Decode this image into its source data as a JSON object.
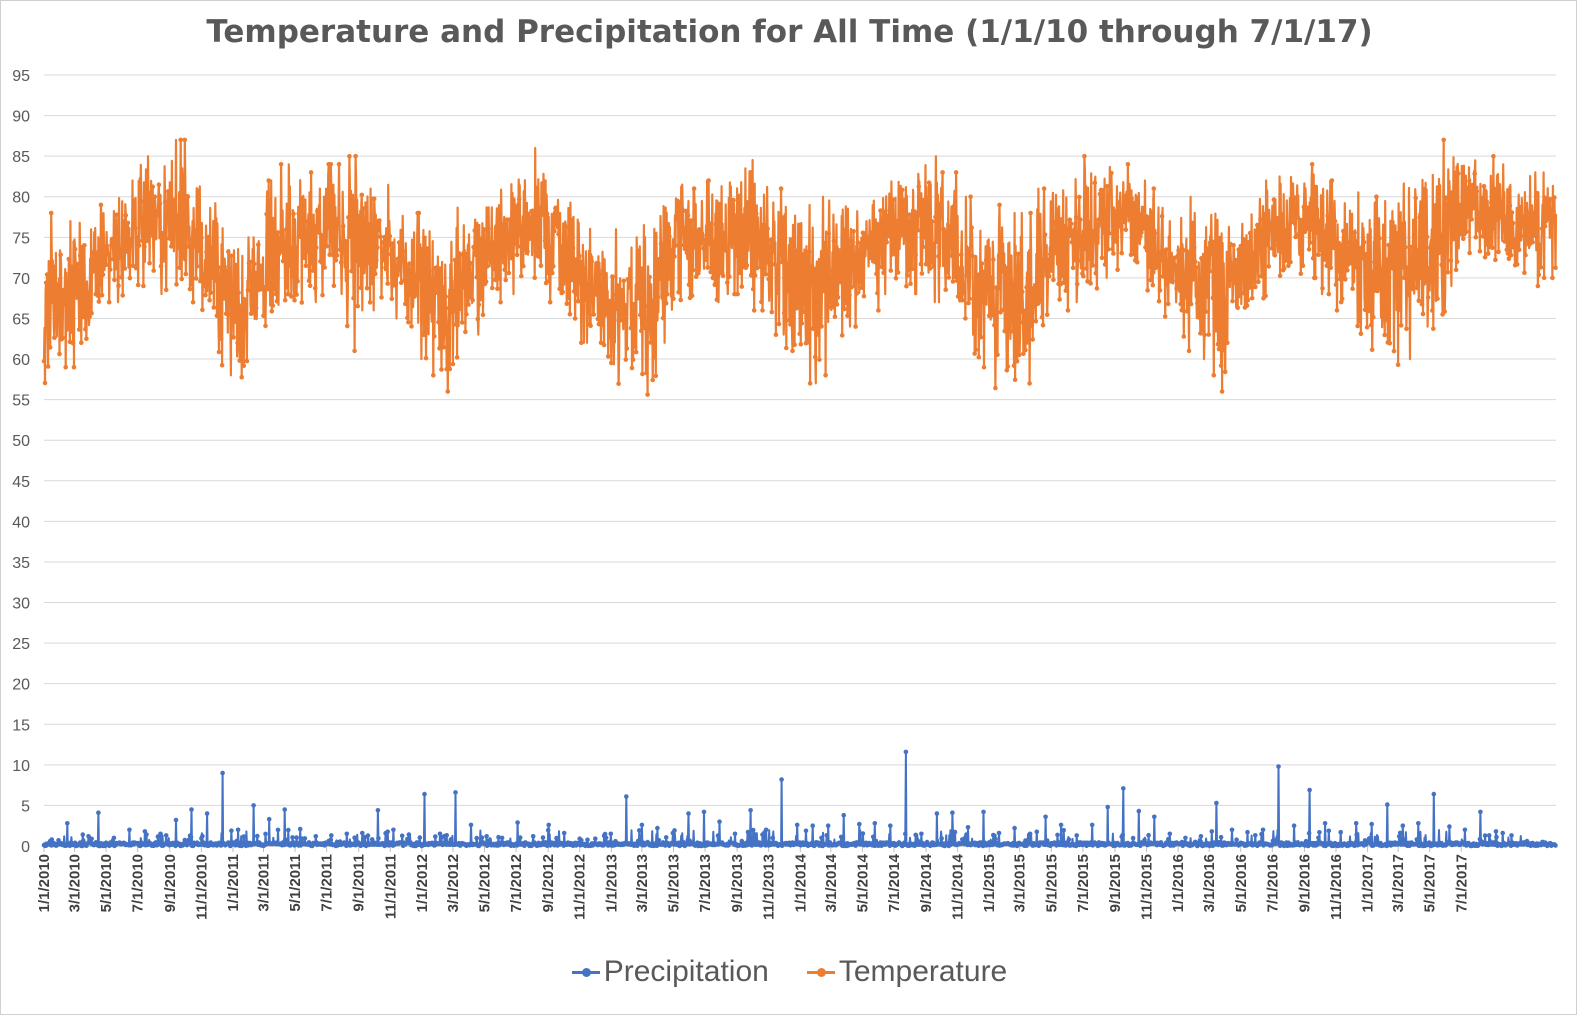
{
  "chart_data": {
    "type": "line",
    "title": "Temperature and Precipitation for All Time (1/1/10 through 7/1/17)",
    "xlabel": "",
    "ylabel": "",
    "ylim": [
      0,
      95
    ],
    "yticks": [
      0,
      5,
      10,
      15,
      20,
      25,
      30,
      35,
      40,
      45,
      50,
      55,
      60,
      65,
      70,
      75,
      80,
      85,
      90,
      95
    ],
    "x_start": "1/1/2010",
    "x_end": "12/31/2017",
    "xtick_labels": [
      "1/1/2010",
      "3/1/2010",
      "5/1/2010",
      "7/1/2010",
      "9/1/2010",
      "11/1/2010",
      "1/1/2011",
      "3/1/2011",
      "5/1/2011",
      "7/1/2011",
      "9/1/2011",
      "11/1/2011",
      "1/1/2012",
      "3/1/2012",
      "5/1/2012",
      "7/1/2012",
      "9/1/2012",
      "11/1/2012",
      "1/1/2013",
      "3/1/2013",
      "5/1/2013",
      "7/1/2013",
      "9/1/2013",
      "11/1/2013",
      "1/1/2014",
      "3/1/2014",
      "5/1/2014",
      "7/1/2014",
      "9/1/2014",
      "11/1/2014",
      "1/1/2015",
      "3/1/2015",
      "5/1/2015",
      "7/1/2015",
      "9/1/2015",
      "11/1/2015",
      "1/1/2016",
      "3/1/2016",
      "5/1/2016",
      "7/1/2016",
      "9/1/2016",
      "11/1/2016",
      "1/1/2017",
      "3/1/2017",
      "5/1/2017",
      "7/1/2017"
    ],
    "grid": true,
    "legend_position": "bottom",
    "series": [
      {
        "name": "Precipitation",
        "color": "#4472C4",
        "dates": [
          "1/1/2010",
          "2/1/2010",
          "3/1/2010",
          "4/1/2010",
          "5/1/2010",
          "6/1/2010",
          "7/1/2010",
          "8/1/2010",
          "9/1/2010",
          "10/1/2010",
          "11/1/2010",
          "12/1/2010",
          "1/1/2011",
          "2/1/2011",
          "3/1/2011",
          "4/1/2011",
          "5/1/2011",
          "6/1/2011",
          "7/1/2011",
          "8/1/2011",
          "9/1/2011",
          "10/1/2011",
          "11/1/2011",
          "12/1/2011",
          "1/1/2012",
          "2/1/2012",
          "3/1/2012",
          "4/1/2012",
          "5/1/2012",
          "6/1/2012",
          "7/1/2012",
          "8/1/2012",
          "9/1/2012",
          "10/1/2012",
          "11/1/2012",
          "12/1/2012",
          "1/1/2013",
          "2/1/2013",
          "3/1/2013",
          "4/1/2013",
          "5/1/2013",
          "6/1/2013",
          "7/1/2013",
          "8/1/2013",
          "9/1/2013",
          "10/1/2013",
          "11/1/2013",
          "12/1/2013",
          "1/1/2014",
          "2/1/2014",
          "3/1/2014",
          "4/1/2014",
          "5/1/2014",
          "6/1/2014",
          "7/1/2014",
          "8/1/2014",
          "9/1/2014",
          "10/1/2014",
          "11/1/2014",
          "12/1/2014",
          "1/1/2015",
          "2/1/2015",
          "3/1/2015",
          "4/1/2015",
          "5/1/2015",
          "6/1/2015",
          "7/1/2015",
          "8/1/2015",
          "9/1/2015",
          "10/1/2015",
          "11/1/2015",
          "12/1/2015",
          "1/1/2016",
          "2/1/2016",
          "3/1/2016",
          "4/1/2016",
          "5/1/2016",
          "6/1/2016",
          "7/1/2016",
          "8/1/2016",
          "9/1/2016",
          "10/1/2016",
          "11/1/2016",
          "12/1/2016",
          "1/1/2017",
          "2/1/2017",
          "3/1/2017",
          "4/1/2017",
          "5/1/2017",
          "6/1/2017",
          "7/1/2017",
          "8/1/2017",
          "9/1/2017",
          "10/1/2017",
          "11/1/2017",
          "12/1/2017"
        ],
        "monthly_max": [
          0.8,
          2.8,
          1.4,
          4.1,
          1.0,
          2.0,
          1.8,
          1.5,
          3.2,
          4.5,
          4.0,
          9.0,
          2.0,
          5.0,
          3.3,
          4.5,
          2.1,
          1.2,
          1.3,
          1.5,
          1.6,
          4.4,
          2.0,
          1.4,
          6.4,
          1.5,
          6.6,
          2.6,
          1.2,
          1.0,
          2.9,
          1.2,
          2.6,
          1.6,
          0.9,
          1.5,
          6.1,
          2.6,
          2.2,
          1.6,
          4.0,
          4.2,
          3.0,
          1.5,
          4.4,
          2.0,
          8.2,
          2.6,
          2.5,
          2.5,
          3.8,
          2.7,
          2.8,
          2.5,
          11.6,
          1.5,
          4.0,
          4.1,
          2.3,
          4.2,
          1.6,
          2.2,
          1.5,
          3.6,
          2.6,
          1.3,
          2.6,
          4.8,
          7.1,
          4.3,
          3.6,
          1.5,
          1.0,
          1.2,
          5.3,
          2.0,
          1.7,
          2.0,
          9.8,
          2.5,
          6.9,
          2.8,
          1.7,
          2.8,
          2.7,
          5.1,
          2.5,
          2.8,
          6.4,
          2.4,
          2.0,
          4.2,
          1.8,
          1.3,
          0.6,
          0.5
        ]
      },
      {
        "name": "Temperature",
        "color": "#ED7D31",
        "dates": [
          "1/1/2010",
          "2/1/2010",
          "3/1/2010",
          "4/1/2010",
          "5/1/2010",
          "6/1/2010",
          "7/1/2010",
          "8/1/2010",
          "9/1/2010",
          "10/1/2010",
          "11/1/2010",
          "12/1/2010",
          "1/1/2011",
          "2/1/2011",
          "3/1/2011",
          "4/1/2011",
          "5/1/2011",
          "6/1/2011",
          "7/1/2011",
          "8/1/2011",
          "9/1/2011",
          "10/1/2011",
          "11/1/2011",
          "12/1/2011",
          "1/1/2012",
          "2/1/2012",
          "3/1/2012",
          "4/1/2012",
          "5/1/2012",
          "6/1/2012",
          "7/1/2012",
          "8/1/2012",
          "9/1/2012",
          "10/1/2012",
          "11/1/2012",
          "12/1/2012",
          "1/1/2013",
          "2/1/2013",
          "3/1/2013",
          "4/1/2013",
          "5/1/2013",
          "6/1/2013",
          "7/1/2013",
          "8/1/2013",
          "9/1/2013",
          "10/1/2013",
          "11/1/2013",
          "12/1/2013",
          "1/1/2014",
          "2/1/2014",
          "3/1/2014",
          "4/1/2014",
          "5/1/2014",
          "6/1/2014",
          "7/1/2014",
          "8/1/2014",
          "9/1/2014",
          "10/1/2014",
          "11/1/2014",
          "12/1/2014",
          "1/1/2015",
          "2/1/2015",
          "3/1/2015",
          "4/1/2015",
          "5/1/2015",
          "6/1/2015",
          "7/1/2015",
          "8/1/2015",
          "9/1/2015",
          "10/1/2015",
          "11/1/2015",
          "12/1/2015",
          "1/1/2016",
          "2/1/2016",
          "3/1/2016",
          "4/1/2016",
          "5/1/2016",
          "6/1/2016",
          "7/1/2016",
          "8/1/2016",
          "9/1/2016",
          "10/1/2016",
          "11/1/2016",
          "12/1/2016",
          "1/1/2017",
          "2/1/2017",
          "3/1/2017",
          "4/1/2017",
          "5/1/2017",
          "6/1/2017",
          "7/1/2017",
          "8/1/2017",
          "9/1/2017",
          "10/1/2017",
          "11/1/2017",
          "12/1/2017"
        ],
        "monthly_low": [
          56,
          59,
          60,
          64,
          67,
          68,
          69,
          68,
          67,
          67,
          64,
          58,
          56,
          60,
          62,
          64,
          66,
          67,
          68,
          61,
          66,
          65,
          65,
          60,
          58,
          56,
          58,
          63,
          67,
          68,
          69,
          68,
          67,
          65,
          62,
          58,
          54,
          56,
          53,
          62,
          65,
          66,
          67,
          68,
          68,
          66,
          63,
          59,
          57,
          58,
          62,
          64,
          66,
          68,
          68,
          68,
          67,
          66,
          63,
          59,
          56,
          56,
          57,
          63,
          66,
          67,
          68,
          70,
          71,
          70,
          66,
          64,
          61,
          60,
          56,
          62,
          65,
          67,
          68,
          69,
          70,
          68,
          66,
          62,
          60,
          59,
          60,
          64,
          58,
          69,
          70,
          71,
          71,
          70,
          69,
          70
        ],
        "monthly_high": [
          78,
          77,
          78,
          79,
          81,
          82,
          85,
          87,
          87,
          84,
          80,
          78,
          77,
          79,
          82,
          84,
          83,
          81,
          84,
          85,
          86,
          82,
          79,
          78,
          77,
          76,
          79,
          80,
          81,
          82,
          84,
          86,
          82,
          80,
          77,
          76,
          76,
          75,
          79,
          80,
          84,
          81,
          82,
          85,
          86,
          83,
          81,
          79,
          79,
          80,
          83,
          81,
          80,
          84,
          84,
          85,
          85,
          83,
          80,
          78,
          79,
          78,
          78,
          81,
          83,
          84,
          85,
          86,
          84,
          82,
          81,
          77,
          80,
          78,
          80,
          79,
          80,
          82,
          83,
          84,
          84,
          82,
          80,
          81,
          80,
          82,
          83,
          84,
          87,
          86,
          87,
          85,
          84,
          83,
          83,
          83
        ]
      }
    ]
  }
}
